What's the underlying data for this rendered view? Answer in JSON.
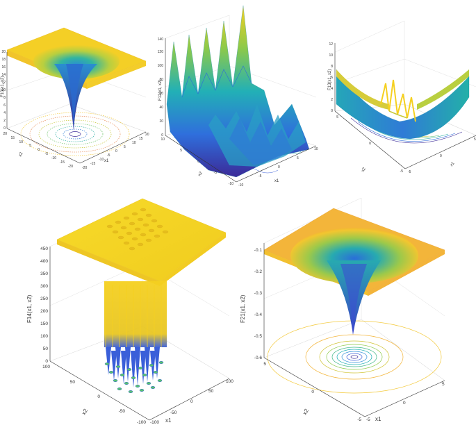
{
  "panels": [
    {
      "id": "f10",
      "zlabel": "F10(x1, x2)",
      "xlabel": "x1",
      "ylabel": "x2",
      "zticks": [
        "0",
        "2",
        "4",
        "6",
        "8",
        "10",
        "12",
        "14",
        "16",
        "18",
        "20"
      ],
      "xticks": [
        "-20",
        "-15",
        "-10",
        "-5",
        "0",
        "5",
        "10",
        "15",
        "20"
      ],
      "yticks": [
        "-20",
        "-15",
        "-10",
        "-5",
        "0",
        "5",
        "10",
        "15",
        "20"
      ]
    },
    {
      "id": "f12",
      "zlabel": "F12(x1, x2)",
      "xlabel": "x1",
      "ylabel": "x2",
      "zticks": [
        "0",
        "20",
        "40",
        "60",
        "80",
        "100",
        "120",
        "140"
      ],
      "xticks": [
        "-10",
        "-5",
        "0",
        "5",
        "10"
      ],
      "yticks": [
        "-10",
        "-5",
        "0",
        "5",
        "10"
      ]
    },
    {
      "id": "f13",
      "zlabel": "F13(x1, x2)",
      "xlabel": "x1",
      "ylabel": "x2",
      "zticks": [
        "0",
        "2",
        "4",
        "6",
        "8",
        "10",
        "12"
      ],
      "xticks": [
        "-5",
        "0",
        "5"
      ],
      "yticks": [
        "-5",
        "0",
        "5"
      ]
    },
    {
      "id": "f14",
      "zlabel": "F14(x1, x2)",
      "xlabel": "x1",
      "ylabel": "x2",
      "zticks": [
        "0",
        "50",
        "100",
        "150",
        "200",
        "250",
        "300",
        "350",
        "400",
        "450"
      ],
      "xticks": [
        "-100",
        "-50",
        "0",
        "50",
        "100"
      ],
      "yticks": [
        "-100",
        "-50",
        "0",
        "50",
        "100"
      ]
    },
    {
      "id": "f21",
      "zlabel": "F21(x1, x2)",
      "xlabel": "x1",
      "ylabel": "x2",
      "zticks": [
        "-0.6",
        "-0.5",
        "-0.4",
        "-0.3",
        "-0.2",
        "-0.1"
      ],
      "xticks": [
        "-5",
        "0",
        "5"
      ],
      "yticks": [
        "-5",
        "0",
        "5"
      ]
    }
  ],
  "colors": {
    "yellow": "#f5d020",
    "orange": "#f0a030",
    "teal": "#29b3a6",
    "blue": "#3a5fd9",
    "navy": "#3b2a98",
    "green": "#58c270",
    "axis": "#333333",
    "grid": "#d8d8d8"
  }
}
